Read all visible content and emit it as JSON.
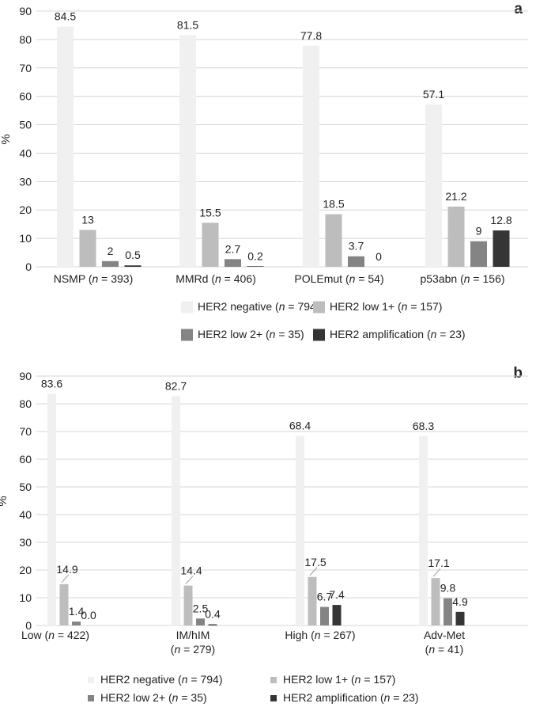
{
  "colors": {
    "HER2 negative": "#f0f0f0",
    "HER2 low 1+": "#bdbdbd",
    "HER2 low 2+": "#848484",
    "HER2 amplification": "#353535",
    "grid": "#d4d4d4"
  },
  "chart_data": [
    {
      "panel": "a",
      "type": "bar",
      "ylabel": "%",
      "xlabel": "",
      "ylim": [
        0,
        90
      ],
      "yticks": [
        0,
        10,
        20,
        30,
        40,
        50,
        60,
        70,
        80,
        90
      ],
      "grid": true,
      "legend_position": "bottom",
      "categories": [
        {
          "name": "NSMP",
          "n": "393",
          "lines": 1
        },
        {
          "name": "MMRd",
          "n": "406",
          "lines": 1
        },
        {
          "name": "POLEmut",
          "n": "54",
          "lines": 1
        },
        {
          "name": "p53abn",
          "n": "156",
          "lines": 1
        }
      ],
      "series": [
        {
          "name": "HER2 negative",
          "n": "794",
          "values": [
            84.5,
            81.5,
            77.8,
            57.1
          ],
          "labels": [
            "84.5",
            "81.5",
            "77.8",
            "57.1"
          ]
        },
        {
          "name": "HER2 low 1+",
          "n": "157",
          "values": [
            13,
            15.5,
            18.5,
            21.2
          ],
          "labels": [
            "13",
            "15.5",
            "18.5",
            "21.2"
          ]
        },
        {
          "name": "HER2 low 2+",
          "n": "35",
          "values": [
            2,
            2.7,
            3.7,
            9
          ],
          "labels": [
            "2",
            "2.7",
            "3.7",
            "9"
          ]
        },
        {
          "name": "HER2 amplification",
          "n": "23",
          "values": [
            0.5,
            0.2,
            0,
            12.8
          ],
          "labels": [
            "0.5",
            "0.2",
            "0",
            "12.8"
          ]
        }
      ]
    },
    {
      "panel": "b",
      "type": "bar",
      "ylabel": "%",
      "xlabel": "",
      "ylim": [
        0,
        90
      ],
      "yticks": [
        0,
        10,
        20,
        30,
        40,
        50,
        60,
        70,
        80,
        90
      ],
      "grid": true,
      "legend_position": "bottom",
      "categories": [
        {
          "name": "Low",
          "n": "422",
          "lines": 1
        },
        {
          "name": "IM/hIM",
          "n": "279",
          "lines": 2
        },
        {
          "name": "High",
          "n": "267",
          "lines": 1
        },
        {
          "name": "Adv-Met",
          "n": "41",
          "lines": 2
        }
      ],
      "series": [
        {
          "name": "HER2 negative",
          "n": "794",
          "values": [
            83.6,
            82.7,
            68.4,
            68.3
          ],
          "labels": [
            "83.6",
            "82.7",
            "68.4",
            "68.3"
          ]
        },
        {
          "name": "HER2 low 1+",
          "n": "157",
          "values": [
            14.9,
            14.4,
            17.5,
            17.1
          ],
          "labels": [
            "14.9",
            "14.4",
            "17.5",
            "17.1"
          ]
        },
        {
          "name": "HER2 low 2+",
          "n": "35",
          "values": [
            1.4,
            2.5,
            6.7,
            9.8
          ],
          "labels": [
            "1.4",
            "2.5",
            "6.7",
            "9.8"
          ]
        },
        {
          "name": "HER2 amplification",
          "n": "23",
          "values": [
            0.0,
            0.4,
            7.4,
            4.9
          ],
          "labels": [
            "0.0",
            "0.4",
            "7.4",
            "4.9"
          ]
        }
      ]
    }
  ]
}
